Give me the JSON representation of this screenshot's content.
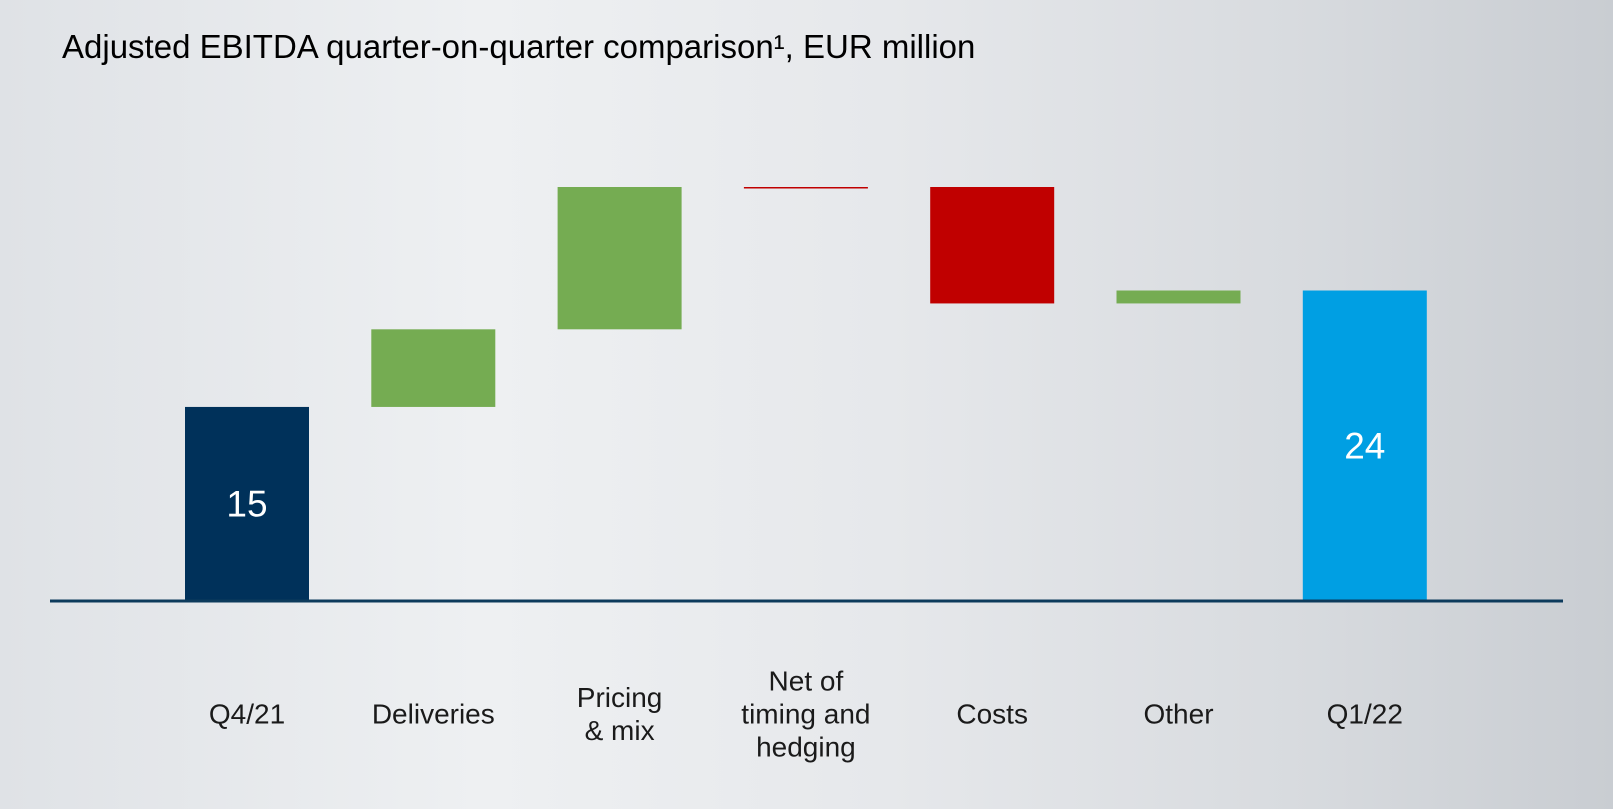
{
  "chart_data": {
    "type": "waterfall",
    "title": "Adjusted EBITDA quarter-on-quarter comparison¹, EUR million",
    "categories": [
      "Q4/21",
      "Deliveries",
      "Pricing\n& mix",
      "Net of\ntiming and\nhedging",
      "Costs",
      "Other",
      "Q1/22"
    ],
    "values": [
      15,
      6,
      11,
      0,
      -9,
      1,
      24
    ],
    "measure": [
      "total",
      "relative",
      "relative",
      "relative",
      "relative",
      "relative",
      "total"
    ],
    "colors": [
      "#00315a",
      "#75ac52",
      "#75ac52",
      "#c00000",
      "#c00000",
      "#75ac52",
      "#009fe3"
    ]
  }
}
